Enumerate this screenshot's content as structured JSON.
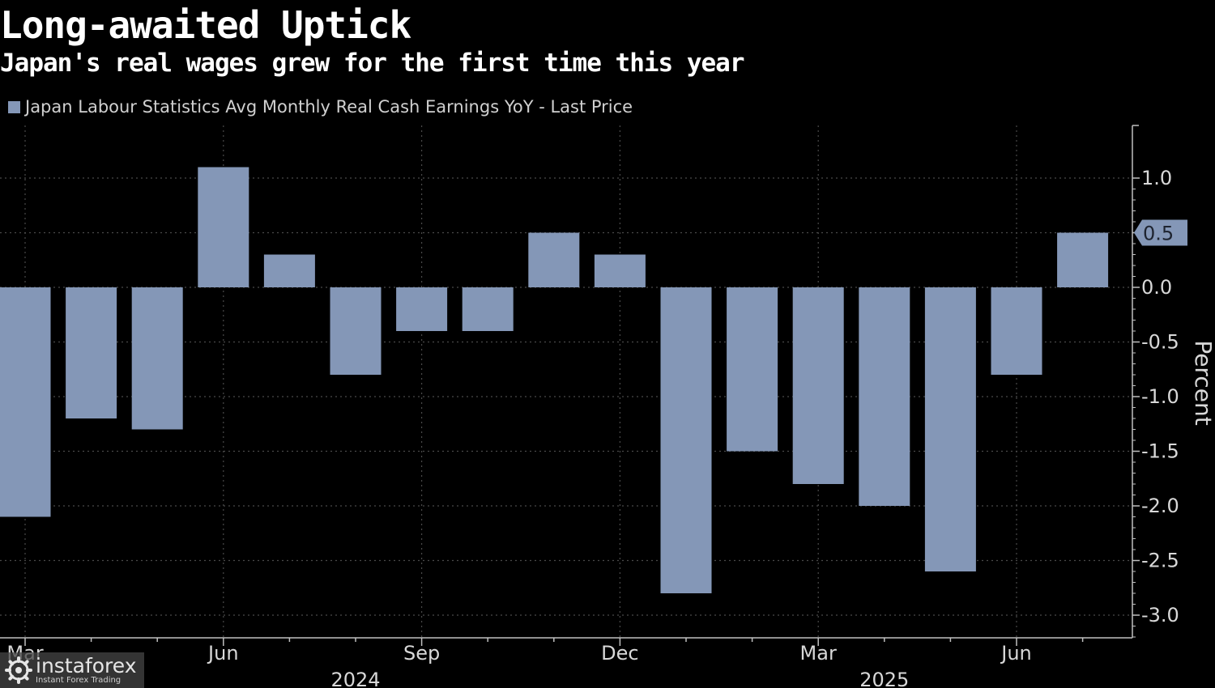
{
  "title": "Long-awaited Uptick",
  "subtitle": "Japan's real wages grew for the first time this year",
  "watermark": {
    "brand": "instaforex",
    "tagline": "Instant Forex Trading",
    "icon": "instaforex-logo-icon"
  },
  "colors": {
    "background": "#000000",
    "bar": "#8497b7",
    "text": "#ffffff",
    "grid": "#4a4a4a",
    "axis": "#bfbfbf"
  },
  "chart_data": {
    "type": "bar",
    "legend": {
      "label": "Japan Labour Statistics Avg Monthly Real Cash Earnings YoY - Last Price",
      "placement": "top-left"
    },
    "series": [
      {
        "name": "Japan Labour Statistics Avg Monthly Real Cash Earnings YoY - Last Price",
        "x": [
          "2024-03",
          "2024-04",
          "2024-05",
          "2024-06",
          "2024-07",
          "2024-08",
          "2024-09",
          "2024-10",
          "2024-11",
          "2024-12",
          "2025-01",
          "2025-02",
          "2025-03",
          "2025-04",
          "2025-05",
          "2025-06",
          "2025-07"
        ],
        "values": [
          -2.1,
          -1.2,
          -1.3,
          1.1,
          0.3,
          -0.8,
          -0.4,
          -0.4,
          0.5,
          0.3,
          -2.8,
          -1.5,
          -1.8,
          -2.0,
          -2.6,
          -0.8,
          0.5
        ]
      }
    ],
    "ylabel": "Percent",
    "y_axis_position": "right",
    "ylim": [
      -3.2,
      1.5
    ],
    "y_ticks": [
      1.0,
      0.5,
      0.0,
      -0.5,
      -1.0,
      -1.5,
      -2.0,
      -2.5,
      -3.0
    ],
    "y_tick_labels": [
      "1.0",
      "0.5",
      "0.0",
      "-0.5",
      "-1.0",
      "-1.5",
      "-2.0",
      "-2.5",
      "-3.0"
    ],
    "last_value_label": "0.5",
    "x_tick_labels": [
      {
        "date": "2024-03",
        "label": "Mar"
      },
      {
        "date": "2024-06",
        "label": "Jun"
      },
      {
        "date": "2024-09",
        "label": "Sep"
      },
      {
        "date": "2024-12",
        "label": "Dec"
      },
      {
        "date": "2025-03",
        "label": "Mar"
      },
      {
        "date": "2025-06",
        "label": "Jun"
      }
    ],
    "year_labels": [
      {
        "label": "2024",
        "center": "2024-08"
      },
      {
        "label": "2025",
        "center": "2025-04"
      }
    ],
    "grid": true
  }
}
